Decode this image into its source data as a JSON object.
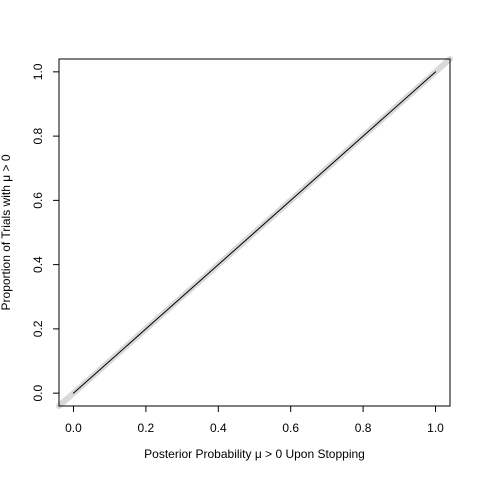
{
  "chart_data": {
    "type": "line",
    "title": "",
    "xlabel": "Posterior Probability μ > 0 Upon Stopping",
    "ylabel": "Proportion of Trials with μ > 0",
    "xlim": [
      -0.04,
      1.04
    ],
    "ylim": [
      -0.04,
      1.04
    ],
    "x_ticks": [
      0.0,
      0.2,
      0.4,
      0.6,
      0.8,
      1.0
    ],
    "y_ticks": [
      0.0,
      0.2,
      0.4,
      0.6,
      0.8,
      1.0
    ],
    "x_tick_labels": [
      "0.0",
      "0.2",
      "0.4",
      "0.6",
      "0.8",
      "1.0"
    ],
    "y_tick_labels": [
      "0.0",
      "0.2",
      "0.4",
      "0.6",
      "0.8",
      "1.0"
    ],
    "grid": false,
    "legend": "none",
    "series": [
      {
        "style": "reference",
        "color": "#d9d9d9",
        "x": [
          -0.04,
          1.04
        ],
        "y": [
          -0.04,
          1.04
        ]
      },
      {
        "style": "observed",
        "color": "#000000",
        "x": [
          0.0,
          0.2,
          0.4,
          0.6,
          0.8,
          1.0
        ],
        "y": [
          0.0,
          0.2,
          0.4,
          0.6,
          0.8,
          1.0
        ]
      }
    ]
  }
}
